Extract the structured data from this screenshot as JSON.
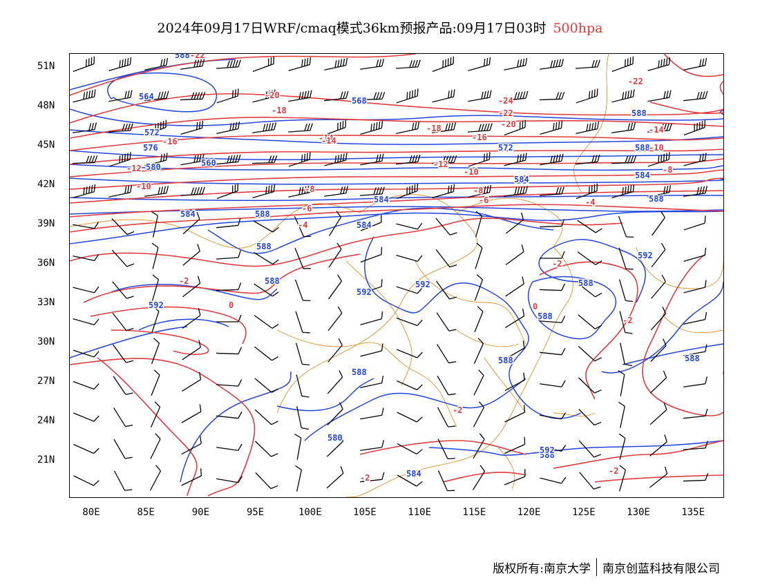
{
  "title": {
    "main": "2024年09月17日WRF/cmaq模式36km预报产品:09月17日03时",
    "level": "500hpa",
    "level_color": "#e8363a"
  },
  "lat_labels": [
    "51N",
    "48N",
    "45N",
    "42N",
    "39N",
    "36N",
    "33N",
    "30N",
    "27N",
    "24N",
    "21N"
  ],
  "lon_labels": [
    "80E",
    "85E",
    "90E",
    "95E",
    "100E",
    "105E",
    "110E",
    "115E",
    "120E",
    "125E",
    "130E",
    "135E"
  ],
  "colors": {
    "height_contour": "#2244dd",
    "temperature_contour": "#e03a3e",
    "border": "#e0902a",
    "wind_barb": "#000000"
  },
  "icons": {
    "wind": "wind-barb-icon"
  },
  "credit": {
    "owner": "版权所有:南京大学",
    "company": "南京创蓝科技有限公司"
  },
  "contour_labels": {
    "height": [
      "588",
      "564",
      "572",
      "576",
      "580",
      "560",
      "568",
      "572",
      "588",
      "584",
      "584",
      "584",
      "588",
      "584",
      "584",
      "588",
      "588",
      "592",
      "592",
      "588",
      "588",
      "580",
      "584",
      "588",
      "592",
      "588",
      "588",
      "588",
      "592",
      "592",
      "588",
      "588"
    ],
    "temperature": [
      "-22",
      "-20",
      "-18",
      "-16",
      "-14",
      "-12",
      "-10",
      "-8",
      "-6",
      "-4",
      "-2",
      "0",
      "-24",
      "-22",
      "-20",
      "-18",
      "-16",
      "-14",
      "-12",
      "-10",
      "-8",
      "-6",
      "-4",
      "-2",
      "0",
      "-2",
      "-2",
      "-2",
      "-2",
      "-22",
      "-14",
      "-10",
      "-8"
    ]
  }
}
